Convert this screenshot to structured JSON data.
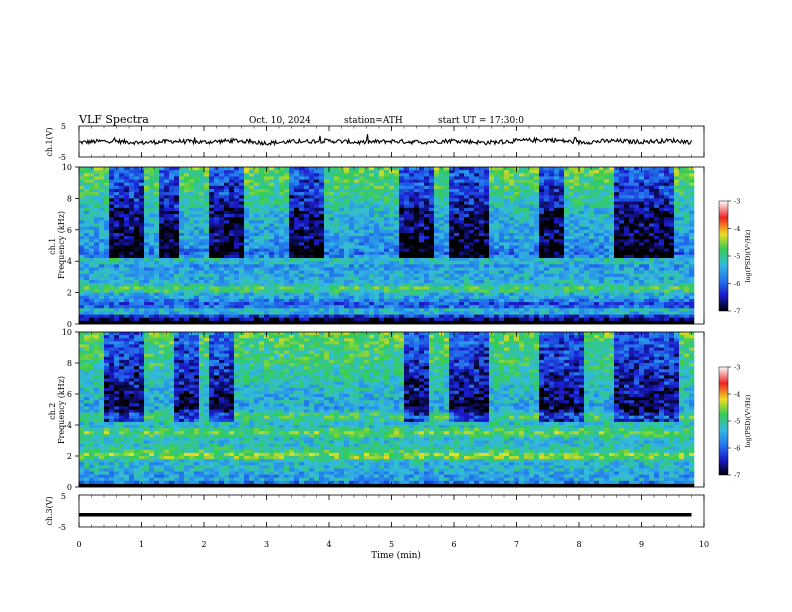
{
  "header": {
    "title": "VLF Spectra",
    "date": "Oct. 10, 2024",
    "station": "station=ATH",
    "start": "start UT = 17:30:0"
  },
  "colors": {
    "background": "#ffffff",
    "axis": "#000000",
    "trace": "#000000",
    "colormap": [
      "#000000",
      "#1a1acc",
      "#2277ee",
      "#33bbdd",
      "#33cc55",
      "#eedd22",
      "#ee2222",
      "#ffffff"
    ]
  },
  "chart_data": [
    {
      "id": "ch1-waveform",
      "type": "line",
      "ylabel": "ch.1(V)",
      "yticks": [
        "5",
        "-5"
      ],
      "ylim": [
        -5,
        5
      ],
      "x": [
        0,
        0.5,
        1,
        1.5,
        2,
        2.5,
        3,
        3.5,
        4,
        4.5,
        5,
        5.5,
        6,
        6.5,
        7,
        7.5,
        8,
        8.5,
        9,
        9.5,
        9.8
      ],
      "series": [
        {
          "values": [
            -0.3,
            0.2,
            -0.4,
            0.1,
            -0.2,
            0.3,
            -0.5,
            0.0,
            0.2,
            -0.3,
            0.1,
            -0.2,
            0.3,
            -0.4,
            0.2,
            0.6,
            -0.3,
            0.2,
            -0.1,
            0.3,
            -0.2
          ]
        }
      ]
    },
    {
      "id": "ch1-spectrogram",
      "type": "heatmap",
      "ylabel": "ch.1\nFrequency (kHz)",
      "yticks": [
        "10",
        "8",
        "6",
        "4",
        "2",
        "0"
      ],
      "ylim": [
        0,
        10
      ],
      "colorbar": {
        "label": "log(PSD)(V²/Hz)",
        "ticks": [
          "-3",
          "-4",
          "-5",
          "-6",
          "-7"
        ],
        "range": [
          -7,
          -3
        ]
      },
      "z_profile_by_freq_khz": [
        [
          0,
          -7
        ],
        [
          0.4,
          -6.6
        ],
        [
          0.8,
          -5.0
        ],
        [
          1.2,
          -6.2
        ],
        [
          1.6,
          -5.6
        ],
        [
          2.0,
          -5.3
        ],
        [
          2.2,
          -4.6
        ],
        [
          2.6,
          -5.4
        ],
        [
          3.2,
          -5.4
        ],
        [
          3.8,
          -5.6
        ],
        [
          4.0,
          -4.9
        ],
        [
          4.4,
          -5.9
        ],
        [
          5.0,
          -5.6
        ],
        [
          6.0,
          -5.4
        ],
        [
          7.0,
          -5.3
        ],
        [
          8.0,
          -5.0
        ],
        [
          9.0,
          -4.8
        ],
        [
          10.0,
          -4.6
        ]
      ],
      "dark_burst_time_ranges_min": [
        [
          0.5,
          1.0
        ],
        [
          1.3,
          1.6
        ],
        [
          2.1,
          2.6
        ],
        [
          3.4,
          3.9
        ],
        [
          5.1,
          5.7
        ],
        [
          5.9,
          6.6
        ],
        [
          7.4,
          7.8
        ],
        [
          8.6,
          9.5
        ]
      ]
    },
    {
      "id": "ch2-spectrogram",
      "type": "heatmap",
      "ylabel": "ch.2\nFrequency (kHz)",
      "yticks": [
        "10",
        "8",
        "6",
        "4",
        "2",
        "0"
      ],
      "ylim": [
        0,
        10
      ],
      "colorbar": {
        "label": "log(PSD)(V²/Hz)",
        "ticks": [
          "-3",
          "-4",
          "-5",
          "-6",
          "-7"
        ],
        "range": [
          -7,
          -3
        ]
      },
      "z_profile_by_freq_khz": [
        [
          0,
          -7
        ],
        [
          0.4,
          -5.4
        ],
        [
          0.8,
          -5.6
        ],
        [
          1.2,
          -5.2
        ],
        [
          1.6,
          -5.4
        ],
        [
          2.0,
          -4.4
        ],
        [
          2.4,
          -5.0
        ],
        [
          3.0,
          -5.3
        ],
        [
          3.5,
          -4.6
        ],
        [
          4.0,
          -5.3
        ],
        [
          4.6,
          -4.7
        ],
        [
          5.0,
          -5.5
        ],
        [
          6.0,
          -5.3
        ],
        [
          7.0,
          -5.1
        ],
        [
          8.0,
          -4.9
        ],
        [
          9.0,
          -4.8
        ],
        [
          10.0,
          -4.6
        ]
      ],
      "dark_burst_time_ranges_min": [
        [
          0.4,
          1.0
        ],
        [
          1.5,
          1.9
        ],
        [
          2.1,
          2.5
        ],
        [
          5.2,
          5.6
        ],
        [
          5.9,
          6.6
        ],
        [
          7.4,
          8.1
        ],
        [
          8.6,
          9.6
        ]
      ]
    },
    {
      "id": "ch3-waveform",
      "type": "line",
      "ylabel": "ch.3(V)",
      "yticks": [
        "5",
        "-5"
      ],
      "ylim": [
        -5,
        5
      ],
      "x": [
        0,
        9.8
      ],
      "series": [
        {
          "values": [
            -1.2,
            -1.2
          ]
        }
      ]
    }
  ],
  "time_axis": {
    "xlabel": "Time (min)",
    "xlim": [
      0,
      10
    ],
    "ticks": [
      "0",
      "1",
      "2",
      "3",
      "4",
      "5",
      "6",
      "7",
      "8",
      "9",
      "10"
    ]
  }
}
